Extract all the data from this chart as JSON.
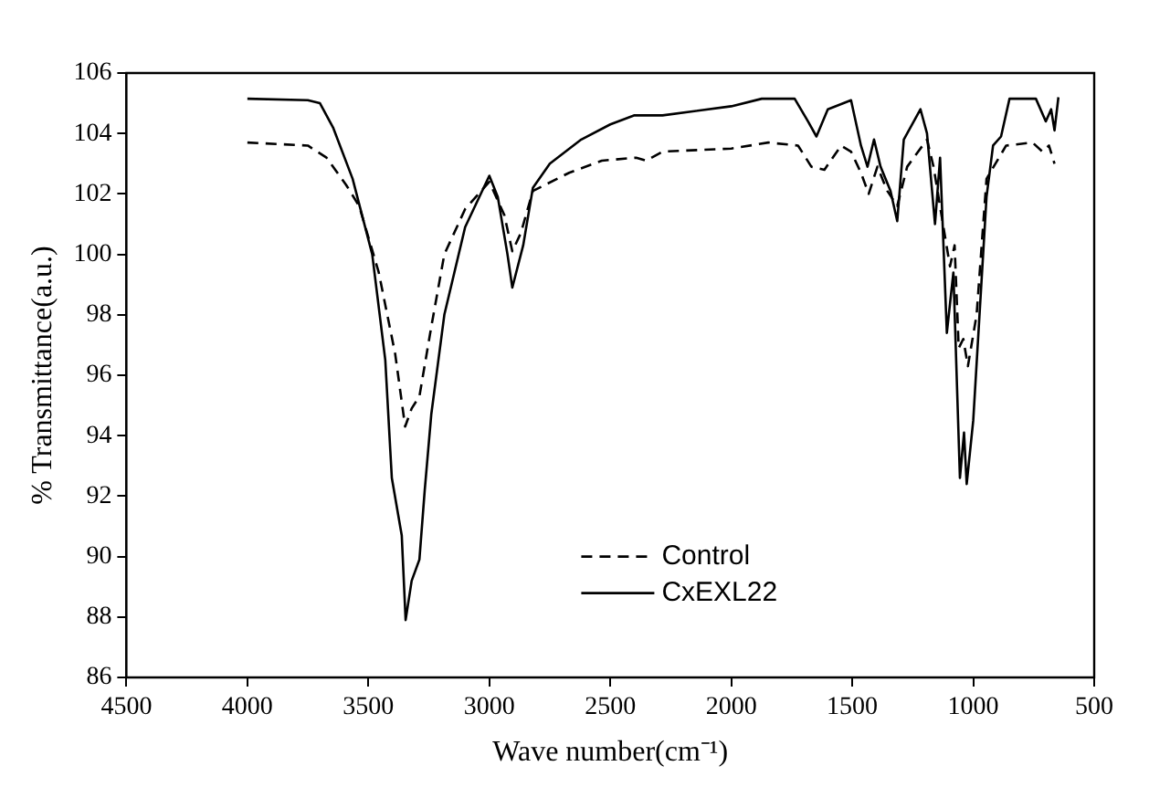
{
  "chart_data": {
    "type": "line",
    "xlabel": "Wave number(cm⁻¹)",
    "ylabel": "% Transmittance(a.u.)",
    "xlim": [
      4500,
      500
    ],
    "xticks": [
      4500,
      4000,
      3500,
      3000,
      2500,
      2000,
      1500,
      1000,
      500
    ],
    "ylim": [
      86,
      106
    ],
    "yticks": [
      86,
      88,
      90,
      92,
      94,
      96,
      98,
      100,
      102,
      104,
      106
    ],
    "grid": false,
    "legend": "bottom",
    "marker": "none",
    "series": [
      {
        "name": "Control",
        "color": "#000000",
        "line_style": "dashed",
        "x": [
          4000,
          3750,
          3673,
          3592,
          3538,
          3457,
          3389,
          3348,
          3321,
          3289,
          3240,
          3186,
          3100,
          3000,
          2938,
          2905,
          2870,
          2820,
          2670,
          2535,
          2393,
          2352,
          2284,
          2000,
          1847,
          1724,
          1669,
          1615,
          1546,
          1505,
          1464,
          1432,
          1396,
          1355,
          1314,
          1273,
          1191,
          1164,
          1123,
          1096,
          1077,
          1060,
          1041,
          1022,
          986,
          945,
          864,
          755,
          714,
          687,
          664
        ],
        "values": [
          103.7,
          103.6,
          103.2,
          102.3,
          101.6,
          99.4,
          96.7,
          94.3,
          94.9,
          95.3,
          97.6,
          100.0,
          101.5,
          102.4,
          101.3,
          100.1,
          100.7,
          102.1,
          102.7,
          103.1,
          103.2,
          103.1,
          103.4,
          103.5,
          103.7,
          103.6,
          102.9,
          102.8,
          103.6,
          103.4,
          102.7,
          102.0,
          102.9,
          102.1,
          101.6,
          102.9,
          103.8,
          102.9,
          100.9,
          99.6,
          100.3,
          96.9,
          97.2,
          96.3,
          98.0,
          102.5,
          103.6,
          103.7,
          103.4,
          103.6,
          103.0
        ]
      },
      {
        "name": "CxEXL22",
        "color": "#000000",
        "line_style": "solid",
        "x": [
          4000,
          3750,
          3700,
          3646,
          3565,
          3484,
          3430,
          3403,
          3362,
          3346,
          3321,
          3289,
          3267,
          3240,
          3186,
          3100,
          3000,
          2965,
          2925,
          2905,
          2860,
          2820,
          2750,
          2620,
          2500,
          2400,
          2284,
          2000,
          1874,
          1738,
          1683,
          1648,
          1601,
          1505,
          1464,
          1437,
          1410,
          1383,
          1342,
          1314,
          1287,
          1218,
          1191,
          1158,
          1137,
          1109,
          1082,
          1055,
          1038,
          1027,
          1000,
          945,
          918,
          885,
          850,
          741,
          700,
          678,
          664,
          648
        ],
        "values": [
          105.15,
          105.1,
          105.0,
          104.2,
          102.5,
          100.0,
          96.5,
          92.6,
          90.7,
          87.9,
          89.2,
          89.9,
          92.2,
          94.7,
          98.0,
          100.9,
          102.6,
          101.9,
          100.0,
          98.9,
          100.3,
          102.2,
          103.0,
          103.8,
          104.3,
          104.6,
          104.6,
          104.9,
          105.15,
          105.15,
          104.4,
          103.9,
          104.8,
          105.1,
          103.6,
          102.9,
          103.8,
          102.9,
          102.1,
          101.1,
          103.8,
          104.8,
          104.0,
          101.0,
          103.2,
          97.4,
          99.4,
          92.6,
          94.1,
          92.4,
          94.5,
          101.9,
          103.6,
          103.9,
          105.15,
          105.15,
          104.4,
          104.8,
          104.1,
          105.2
        ]
      }
    ]
  }
}
